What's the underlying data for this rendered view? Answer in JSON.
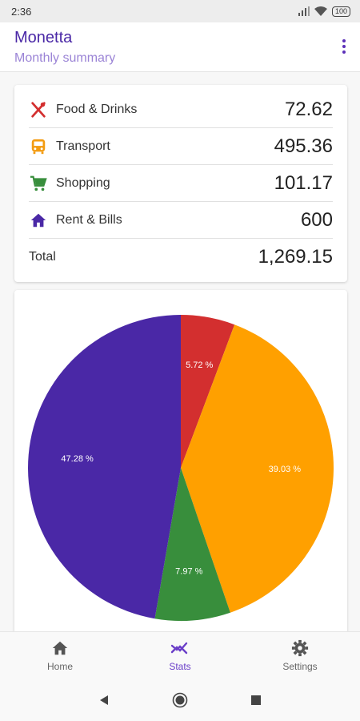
{
  "status_bar": {
    "time": "2:36",
    "battery": "100"
  },
  "app_bar": {
    "title": "Monetta",
    "subtitle": "Monthly summary"
  },
  "summary": {
    "rows": [
      {
        "label": "Food & Drinks",
        "amount": "72.62",
        "icon": "food-icon",
        "color": "#d32f2f"
      },
      {
        "label": "Transport",
        "amount": "495.36",
        "icon": "bus-icon",
        "color": "#f39c12"
      },
      {
        "label": "Shopping",
        "amount": "101.17",
        "icon": "cart-icon",
        "color": "#388e3c"
      },
      {
        "label": "Rent & Bills",
        "amount": "600",
        "icon": "home-icon",
        "color": "#4a28a6"
      }
    ],
    "total_label": "Total",
    "total_amount": "1,269.15"
  },
  "chart_data": {
    "type": "pie",
    "slices": [
      {
        "label": "5.72 %",
        "value": 5.72,
        "color": "#d32f2f"
      },
      {
        "label": "39.03 %",
        "value": 39.03,
        "color": "#ffa000"
      },
      {
        "label": "7.97 %",
        "value": 7.97,
        "color": "#388e3c"
      },
      {
        "label": "47.28 %",
        "value": 47.28,
        "color": "#4a28a6"
      }
    ]
  },
  "bottom_nav": {
    "home": "Home",
    "stats": "Stats",
    "settings": "Settings",
    "active": "stats",
    "active_color": "#6a3ec8"
  }
}
